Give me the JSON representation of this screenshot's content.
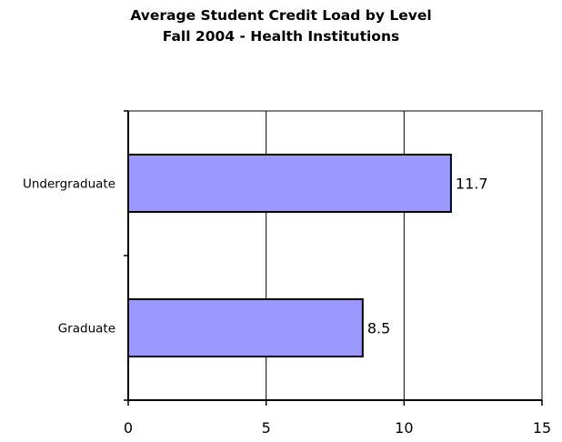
{
  "chart_data": {
    "type": "bar",
    "orientation": "horizontal",
    "title": "Average Student Credit Load by Level",
    "subtitle": "Fall 2004 - Health Institutions",
    "categories": [
      "Undergraduate",
      "Graduate"
    ],
    "values": [
      11.7,
      8.5
    ],
    "data_labels": [
      "11.7",
      "8.5"
    ],
    "x_ticks": [
      "0",
      "5",
      "10",
      "15"
    ],
    "xlim": [
      0,
      15
    ],
    "xlabel": "",
    "ylabel": "",
    "grid": "vertical gridlines",
    "legend": "none",
    "bar_color": "#9999ff",
    "bar_border_color": "#000000"
  }
}
